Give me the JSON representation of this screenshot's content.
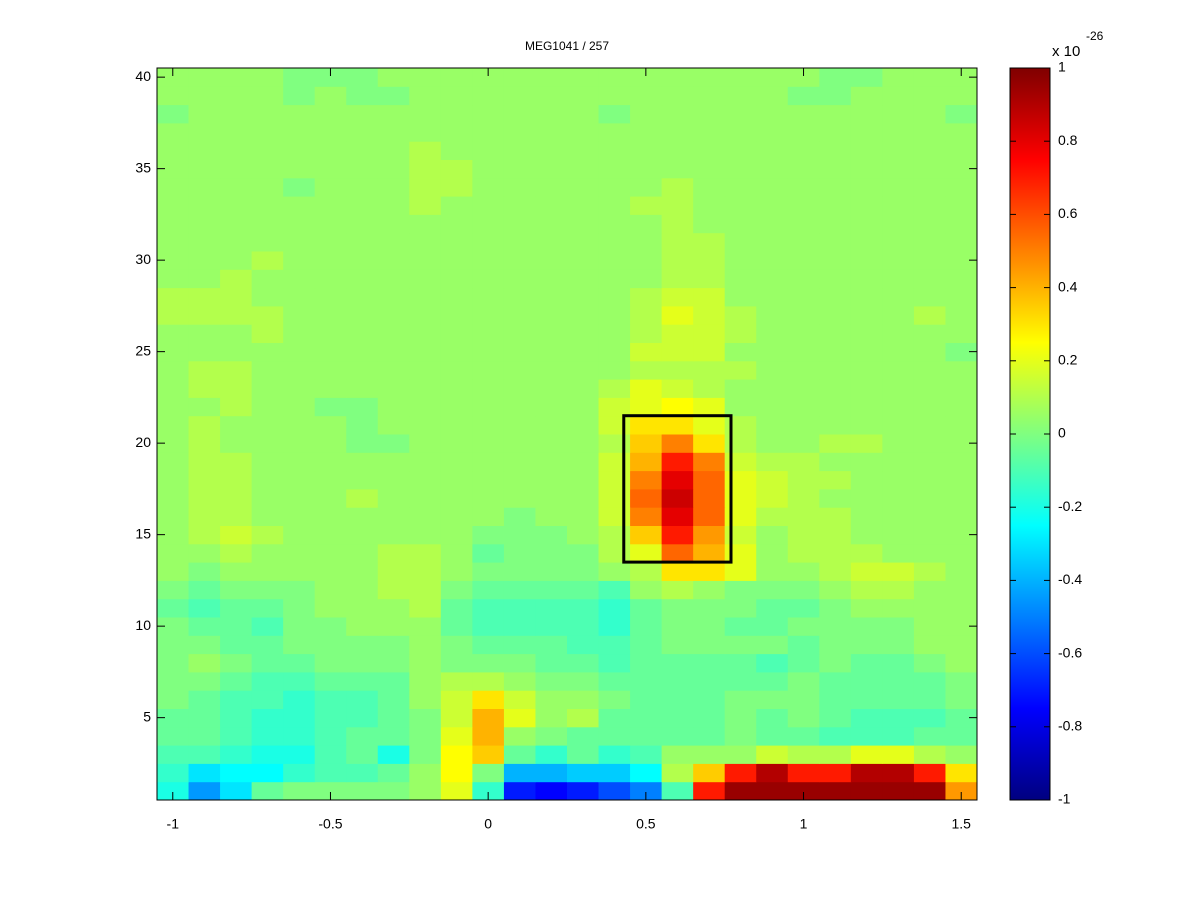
{
  "chart_data": {
    "type": "heatmap",
    "title": "MEG1041 / 257",
    "x": [
      -1,
      -0.9,
      -0.8,
      -0.7,
      -0.6,
      -0.5,
      -0.4,
      -0.3,
      -0.2,
      -0.1,
      0,
      0.1,
      0.2,
      0.3,
      0.4,
      0.5,
      0.6,
      0.7,
      0.8,
      0.9,
      1,
      1.1,
      1.2,
      1.3,
      1.4,
      1.5
    ],
    "y": [
      1,
      2,
      3,
      4,
      5,
      6,
      7,
      8,
      9,
      10,
      11,
      12,
      13,
      14,
      15,
      16,
      17,
      18,
      19,
      20,
      21,
      22,
      23,
      24,
      25,
      26,
      27,
      28,
      29,
      30,
      31,
      32,
      33,
      34,
      35,
      36,
      37,
      38,
      39,
      40
    ],
    "values": [
      [
        -0.2,
        -0.45,
        -0.3,
        -0.05,
        0,
        0,
        0,
        0,
        0.05,
        0.2,
        -0.15,
        -0.7,
        -0.75,
        -0.7,
        -0.6,
        -0.5,
        -0.1,
        0.7,
        0.95,
        0.95,
        0.95,
        0.95,
        0.95,
        0.95,
        0.95,
        0.45
      ],
      [
        -0.15,
        -0.3,
        -0.25,
        -0.25,
        -0.15,
        -0.1,
        -0.1,
        -0.05,
        0.05,
        0.25,
        0,
        -0.4,
        -0.4,
        -0.35,
        -0.35,
        -0.25,
        0.1,
        0.35,
        0.7,
        0.9,
        0.7,
        0.7,
        0.9,
        0.9,
        0.7,
        0.3
      ],
      [
        -0.1,
        -0.1,
        -0.15,
        -0.2,
        -0.2,
        -0.1,
        -0.05,
        -0.2,
        0,
        0.25,
        0.35,
        -0.05,
        -0.15,
        -0.05,
        -0.15,
        -0.1,
        0.05,
        0.05,
        0.05,
        0.15,
        0.1,
        0.1,
        0.2,
        0.2,
        0.1,
        0.05
      ],
      [
        -0.05,
        -0.05,
        -0.1,
        -0.15,
        -0.15,
        -0.1,
        -0.05,
        -0.05,
        0,
        0.2,
        0.4,
        0.05,
        0,
        -0.05,
        -0.05,
        -0.05,
        -0.05,
        -0.05,
        0,
        -0.05,
        -0.05,
        -0.1,
        -0.1,
        -0.1,
        -0.05,
        -0.05
      ],
      [
        -0.05,
        -0.05,
        -0.1,
        -0.15,
        -0.15,
        -0.1,
        -0.1,
        -0.05,
        0,
        0.15,
        0.4,
        0.2,
        0.05,
        0.1,
        -0.05,
        -0.05,
        -0.05,
        -0.05,
        0,
        -0.05,
        0,
        -0.05,
        -0.1,
        -0.1,
        -0.1,
        -0.05
      ],
      [
        0,
        -0.05,
        -0.1,
        -0.1,
        -0.15,
        -0.1,
        -0.1,
        -0.05,
        0.05,
        0.15,
        0.3,
        0.15,
        0.05,
        0.05,
        0,
        -0.05,
        -0.05,
        -0.05,
        0,
        0,
        0,
        -0.05,
        -0.05,
        -0.05,
        -0.05,
        0
      ],
      [
        0,
        0,
        -0.05,
        -0.1,
        -0.1,
        -0.05,
        -0.05,
        -0.05,
        0.05,
        0.1,
        0.1,
        0.05,
        0,
        0,
        -0.05,
        -0.05,
        -0.05,
        -0.05,
        -0.05,
        -0.05,
        0,
        -0.05,
        -0.05,
        -0.05,
        -0.05,
        0
      ],
      [
        0,
        0.05,
        0,
        -0.05,
        -0.05,
        0,
        0,
        0,
        0.05,
        0,
        0,
        0,
        -0.05,
        -0.05,
        -0.1,
        -0.05,
        -0.05,
        -0.05,
        -0.05,
        -0.1,
        -0.05,
        0,
        -0.05,
        -0.05,
        0,
        0.05
      ],
      [
        0,
        0,
        -0.05,
        -0.05,
        0,
        0,
        0,
        0,
        0.05,
        0,
        -0.05,
        -0.05,
        -0.05,
        -0.1,
        -0.1,
        -0.05,
        0,
        0,
        0,
        0,
        -0.05,
        0,
        0,
        0,
        0.05,
        0.05
      ],
      [
        0,
        -0.05,
        -0.05,
        -0.1,
        0,
        0,
        0.05,
        0.05,
        0.05,
        -0.05,
        -0.1,
        -0.1,
        -0.1,
        -0.1,
        -0.15,
        -0.05,
        0,
        0,
        -0.05,
        -0.05,
        0,
        0,
        0,
        0,
        0.05,
        0.05
      ],
      [
        -0.05,
        -0.1,
        -0.05,
        -0.05,
        0,
        0.05,
        0.05,
        0.05,
        0.1,
        -0.05,
        -0.1,
        -0.1,
        -0.1,
        -0.1,
        -0.15,
        -0.05,
        0,
        0,
        0,
        -0.05,
        -0.05,
        0,
        0.05,
        0.05,
        0.05,
        0.05
      ],
      [
        0,
        -0.05,
        0,
        0,
        0,
        0.05,
        0.05,
        0.1,
        0.1,
        0,
        -0.05,
        -0.05,
        -0.05,
        -0.05,
        -0.1,
        0.05,
        0.1,
        0.05,
        0,
        0,
        0,
        0.05,
        0.1,
        0.1,
        0.05,
        0.05
      ],
      [
        0.05,
        0,
        0.05,
        0.05,
        0.05,
        0.05,
        0.05,
        0.1,
        0.1,
        0.05,
        0,
        0,
        0,
        0,
        0.05,
        0.1,
        0.3,
        0.3,
        0.2,
        0.05,
        0.05,
        0.1,
        0.15,
        0.15,
        0.1,
        0.05
      ],
      [
        0.05,
        0.05,
        0.1,
        0.05,
        0.05,
        0.05,
        0.05,
        0.1,
        0.1,
        0.05,
        -0.05,
        0,
        0,
        0,
        0.1,
        0.2,
        0.55,
        0.4,
        0.2,
        0.05,
        0.1,
        0.1,
        0.1,
        0.05,
        0.05,
        0.05
      ],
      [
        0.05,
        0.1,
        0.15,
        0.1,
        0.05,
        0.05,
        0.05,
        0.05,
        0.05,
        0.05,
        0,
        0,
        0,
        0.05,
        0.1,
        0.35,
        0.7,
        0.45,
        0.15,
        0.05,
        0.1,
        0.1,
        0.05,
        0.05,
        0.05,
        0.05
      ],
      [
        0.05,
        0.1,
        0.1,
        0.05,
        0.05,
        0.05,
        0.05,
        0.05,
        0.05,
        0.05,
        0.05,
        0,
        0.05,
        0.05,
        0.15,
        0.5,
        0.8,
        0.55,
        0.2,
        0.1,
        0.1,
        0.1,
        0.05,
        0.05,
        0.05,
        0.05
      ],
      [
        0.05,
        0.1,
        0.1,
        0.05,
        0.05,
        0.05,
        0.1,
        0.05,
        0.05,
        0.05,
        0.05,
        0.05,
        0.05,
        0.05,
        0.15,
        0.55,
        0.85,
        0.55,
        0.2,
        0.15,
        0.1,
        0.05,
        0.05,
        0.05,
        0.05,
        0.05
      ],
      [
        0.05,
        0.1,
        0.1,
        0.05,
        0.05,
        0.05,
        0.05,
        0.05,
        0.05,
        0.05,
        0.05,
        0.05,
        0.05,
        0.05,
        0.15,
        0.5,
        0.8,
        0.55,
        0.2,
        0.15,
        0.1,
        0.1,
        0.05,
        0.05,
        0.05,
        0.05
      ],
      [
        0.05,
        0.1,
        0.1,
        0.05,
        0.05,
        0.05,
        0.05,
        0.05,
        0.05,
        0.05,
        0.05,
        0.05,
        0.05,
        0.05,
        0.15,
        0.4,
        0.7,
        0.5,
        0.15,
        0.1,
        0.1,
        0.05,
        0.05,
        0.05,
        0.05,
        0.05
      ],
      [
        0.05,
        0.1,
        0.05,
        0.05,
        0.05,
        0.05,
        0,
        0,
        0.05,
        0.05,
        0.05,
        0.05,
        0.05,
        0.05,
        0.1,
        0.35,
        0.5,
        0.3,
        0.1,
        0.05,
        0.05,
        0.1,
        0.1,
        0.05,
        0.05,
        0.05
      ],
      [
        0.05,
        0.1,
        0.05,
        0.05,
        0.05,
        0.05,
        0,
        0.05,
        0.05,
        0.05,
        0.05,
        0.05,
        0.05,
        0.05,
        0.15,
        0.3,
        0.3,
        0.2,
        0.1,
        0.05,
        0.05,
        0.05,
        0.05,
        0.05,
        0.05,
        0.05
      ],
      [
        0.05,
        0.05,
        0.1,
        0.05,
        0.05,
        0,
        0,
        0.05,
        0.05,
        0.05,
        0.05,
        0.05,
        0.05,
        0.05,
        0.15,
        0.2,
        0.25,
        0.2,
        0.05,
        0.05,
        0.05,
        0.05,
        0.05,
        0.05,
        0.05,
        0.05
      ],
      [
        0.05,
        0.1,
        0.1,
        0.05,
        0.05,
        0.05,
        0.05,
        0.05,
        0.05,
        0.05,
        0.05,
        0.05,
        0.05,
        0.05,
        0.1,
        0.2,
        0.15,
        0.1,
        0.05,
        0.05,
        0.05,
        0.05,
        0.05,
        0.05,
        0.05,
        0.05
      ],
      [
        0.05,
        0.1,
        0.1,
        0.05,
        0.05,
        0.05,
        0.05,
        0.05,
        0.05,
        0.05,
        0.05,
        0.05,
        0.05,
        0.05,
        0.05,
        0.1,
        0.1,
        0.1,
        0.1,
        0.05,
        0.05,
        0.05,
        0.05,
        0.05,
        0.05,
        0.05
      ],
      [
        0.05,
        0.05,
        0.05,
        0.05,
        0.05,
        0.05,
        0.05,
        0.05,
        0.05,
        0.05,
        0.05,
        0.05,
        0.05,
        0.05,
        0.05,
        0.15,
        0.15,
        0.15,
        0.05,
        0.05,
        0.05,
        0.05,
        0.05,
        0.05,
        0.05,
        0
      ],
      [
        0.05,
        0.05,
        0.05,
        0.1,
        0.05,
        0.05,
        0.05,
        0.05,
        0.05,
        0.05,
        0.05,
        0.05,
        0.05,
        0.05,
        0.05,
        0.1,
        0.15,
        0.15,
        0.1,
        0.05,
        0.05,
        0.05,
        0.05,
        0.05,
        0.05,
        0.05
      ],
      [
        0.1,
        0.1,
        0.1,
        0.1,
        0.05,
        0.05,
        0.05,
        0.05,
        0.05,
        0.05,
        0.05,
        0.05,
        0.05,
        0.05,
        0.05,
        0.1,
        0.2,
        0.15,
        0.1,
        0.05,
        0.05,
        0.05,
        0.05,
        0.05,
        0.1,
        0.05
      ],
      [
        0.1,
        0.1,
        0.1,
        0.05,
        0.05,
        0.05,
        0.05,
        0.05,
        0.05,
        0.05,
        0.05,
        0.05,
        0.05,
        0.05,
        0.05,
        0.1,
        0.15,
        0.15,
        0.05,
        0.05,
        0.05,
        0.05,
        0.05,
        0.05,
        0.05,
        0.05
      ],
      [
        0.05,
        0.05,
        0.1,
        0.05,
        0.05,
        0.05,
        0.05,
        0.05,
        0.05,
        0.05,
        0.05,
        0.05,
        0.05,
        0.05,
        0.05,
        0.05,
        0.1,
        0.1,
        0.05,
        0.05,
        0.05,
        0.05,
        0.05,
        0.05,
        0.05,
        0.05
      ],
      [
        0.05,
        0.05,
        0.05,
        0.1,
        0.05,
        0.05,
        0.05,
        0.05,
        0.05,
        0.05,
        0.05,
        0.05,
        0.05,
        0.05,
        0.05,
        0.05,
        0.1,
        0.1,
        0.05,
        0.05,
        0.05,
        0.05,
        0.05,
        0.05,
        0.05,
        0.05
      ],
      [
        0.05,
        0.05,
        0.05,
        0.05,
        0.05,
        0.05,
        0.05,
        0.05,
        0.05,
        0.05,
        0.05,
        0.05,
        0.05,
        0.05,
        0.05,
        0.05,
        0.1,
        0.1,
        0.05,
        0.05,
        0.05,
        0.05,
        0.05,
        0.05,
        0.05,
        0.05
      ],
      [
        0.05,
        0.05,
        0.05,
        0.05,
        0.05,
        0.05,
        0.05,
        0.05,
        0.05,
        0.05,
        0.05,
        0.05,
        0.05,
        0.05,
        0.05,
        0.05,
        0.1,
        0.05,
        0.05,
        0.05,
        0.05,
        0.05,
        0.05,
        0.05,
        0.05,
        0.05
      ],
      [
        0.05,
        0.05,
        0.05,
        0.05,
        0.05,
        0.05,
        0.05,
        0.05,
        0.1,
        0.05,
        0.05,
        0.05,
        0.05,
        0.05,
        0.05,
        0.1,
        0.1,
        0.05,
        0.05,
        0.05,
        0.05,
        0.05,
        0.05,
        0.05,
        0.05,
        0.05
      ],
      [
        0.05,
        0.05,
        0.05,
        0.05,
        0,
        0.05,
        0.05,
        0.05,
        0.1,
        0.1,
        0.05,
        0.05,
        0.05,
        0.05,
        0.05,
        0.05,
        0.1,
        0.05,
        0.05,
        0.05,
        0.05,
        0.05,
        0.05,
        0.05,
        0.05,
        0.05
      ],
      [
        0.05,
        0.05,
        0.05,
        0.05,
        0.05,
        0.05,
        0.05,
        0.05,
        0.1,
        0.1,
        0.05,
        0.05,
        0.05,
        0.05,
        0.05,
        0.05,
        0.05,
        0.05,
        0.05,
        0.05,
        0.05,
        0.05,
        0.05,
        0.05,
        0.05,
        0.05
      ],
      [
        0.05,
        0.05,
        0.05,
        0.05,
        0.05,
        0.05,
        0.05,
        0.05,
        0.1,
        0.05,
        0.05,
        0.05,
        0.05,
        0.05,
        0.05,
        0.05,
        0.05,
        0.05,
        0.05,
        0.05,
        0.05,
        0.05,
        0.05,
        0.05,
        0.05,
        0.05
      ],
      [
        0.05,
        0.05,
        0.05,
        0.05,
        0.05,
        0.05,
        0.05,
        0.05,
        0.05,
        0.05,
        0.05,
        0.05,
        0.05,
        0.05,
        0.05,
        0.05,
        0.05,
        0.05,
        0.05,
        0.05,
        0.05,
        0.05,
        0.05,
        0.05,
        0.05,
        0.05
      ],
      [
        0,
        0.05,
        0.05,
        0.05,
        0.05,
        0.05,
        0.05,
        0.05,
        0.05,
        0.05,
        0.05,
        0.05,
        0.05,
        0.05,
        0,
        0.05,
        0.05,
        0.05,
        0.05,
        0.05,
        0.05,
        0.05,
        0.05,
        0.05,
        0.05,
        0
      ],
      [
        0.05,
        0.05,
        0.05,
        0.05,
        0,
        0.05,
        0,
        0,
        0.05,
        0.05,
        0.05,
        0.05,
        0.05,
        0.05,
        0.05,
        0.05,
        0.05,
        0.05,
        0.05,
        0.05,
        0,
        0,
        0.05,
        0.05,
        0.05,
        0.05
      ],
      [
        0.05,
        0.05,
        0.05,
        0.05,
        0,
        0,
        0,
        0.05,
        0.05,
        0.05,
        0.05,
        0.05,
        0.05,
        0.05,
        0.05,
        0.05,
        0.05,
        0.05,
        0.05,
        0.05,
        0.05,
        0,
        0,
        0.05,
        0.05,
        0.05
      ]
    ],
    "xlim": [
      -1.05,
      1.55
    ],
    "xticks": [
      -1,
      -0.5,
      0,
      0.5,
      1,
      1.5
    ],
    "ylim": [
      0.5,
      40.5
    ],
    "yticks": [
      5,
      10,
      15,
      20,
      25,
      30,
      35,
      40
    ],
    "colormap": "jet",
    "colorbar": {
      "lim": [
        -1,
        1
      ],
      "ticks": [
        -1,
        -0.8,
        -0.6,
        -0.4,
        -0.2,
        0,
        0.2,
        0.4,
        0.6,
        0.8,
        1
      ],
      "scale_label": "x 10",
      "scale_exponent": "-26"
    },
    "box": {
      "x": [
        0.43,
        0.77
      ],
      "y": [
        13.5,
        21.5
      ],
      "color": "#000000"
    }
  }
}
